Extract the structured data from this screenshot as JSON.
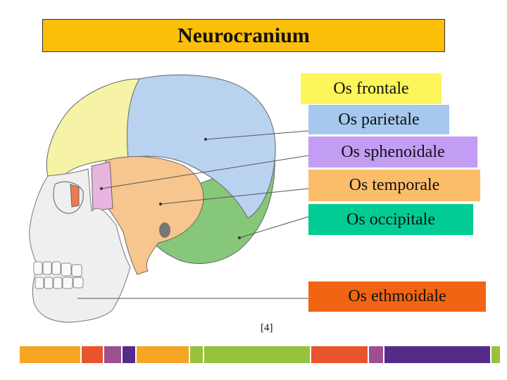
{
  "title": "Neurocranium",
  "labels": [
    {
      "id": "frontale",
      "text": "Os frontale",
      "color": "#fdf65a"
    },
    {
      "id": "parietale",
      "text": "Os parietale",
      "color": "#a6c8ef"
    },
    {
      "id": "sphenoidale",
      "text": "Os sphenoidale",
      "color": "#c39cf4"
    },
    {
      "id": "temporale",
      "text": "Os temporale",
      "color": "#fbbd6a"
    },
    {
      "id": "occipitale",
      "text": "Os occipitale",
      "color": "#02cc94"
    },
    {
      "id": "ethmoidale",
      "text": "Os ethmoidale",
      "color": "#f16413"
    }
  ],
  "reference": "[4]",
  "colors": {
    "title_bg": "#fbbf0a",
    "bone_frontal": "#f6f2a6",
    "bone_parietal": "#b9d2ef",
    "bone_temporal": "#f7c58e",
    "bone_occipital": "#86c77a",
    "bone_sphenoid": "#e9b4df",
    "bone_ethmoid": "#ef7a4c",
    "face_bone": "#efefef"
  },
  "footer_bar_colors": [
    "#f5a623",
    "#e8542b",
    "#9e4f92",
    "#552b8a",
    "#97c23d",
    "#f5a623",
    "#e8542b",
    "#9e4f92",
    "#552b8a",
    "#97c23d"
  ]
}
